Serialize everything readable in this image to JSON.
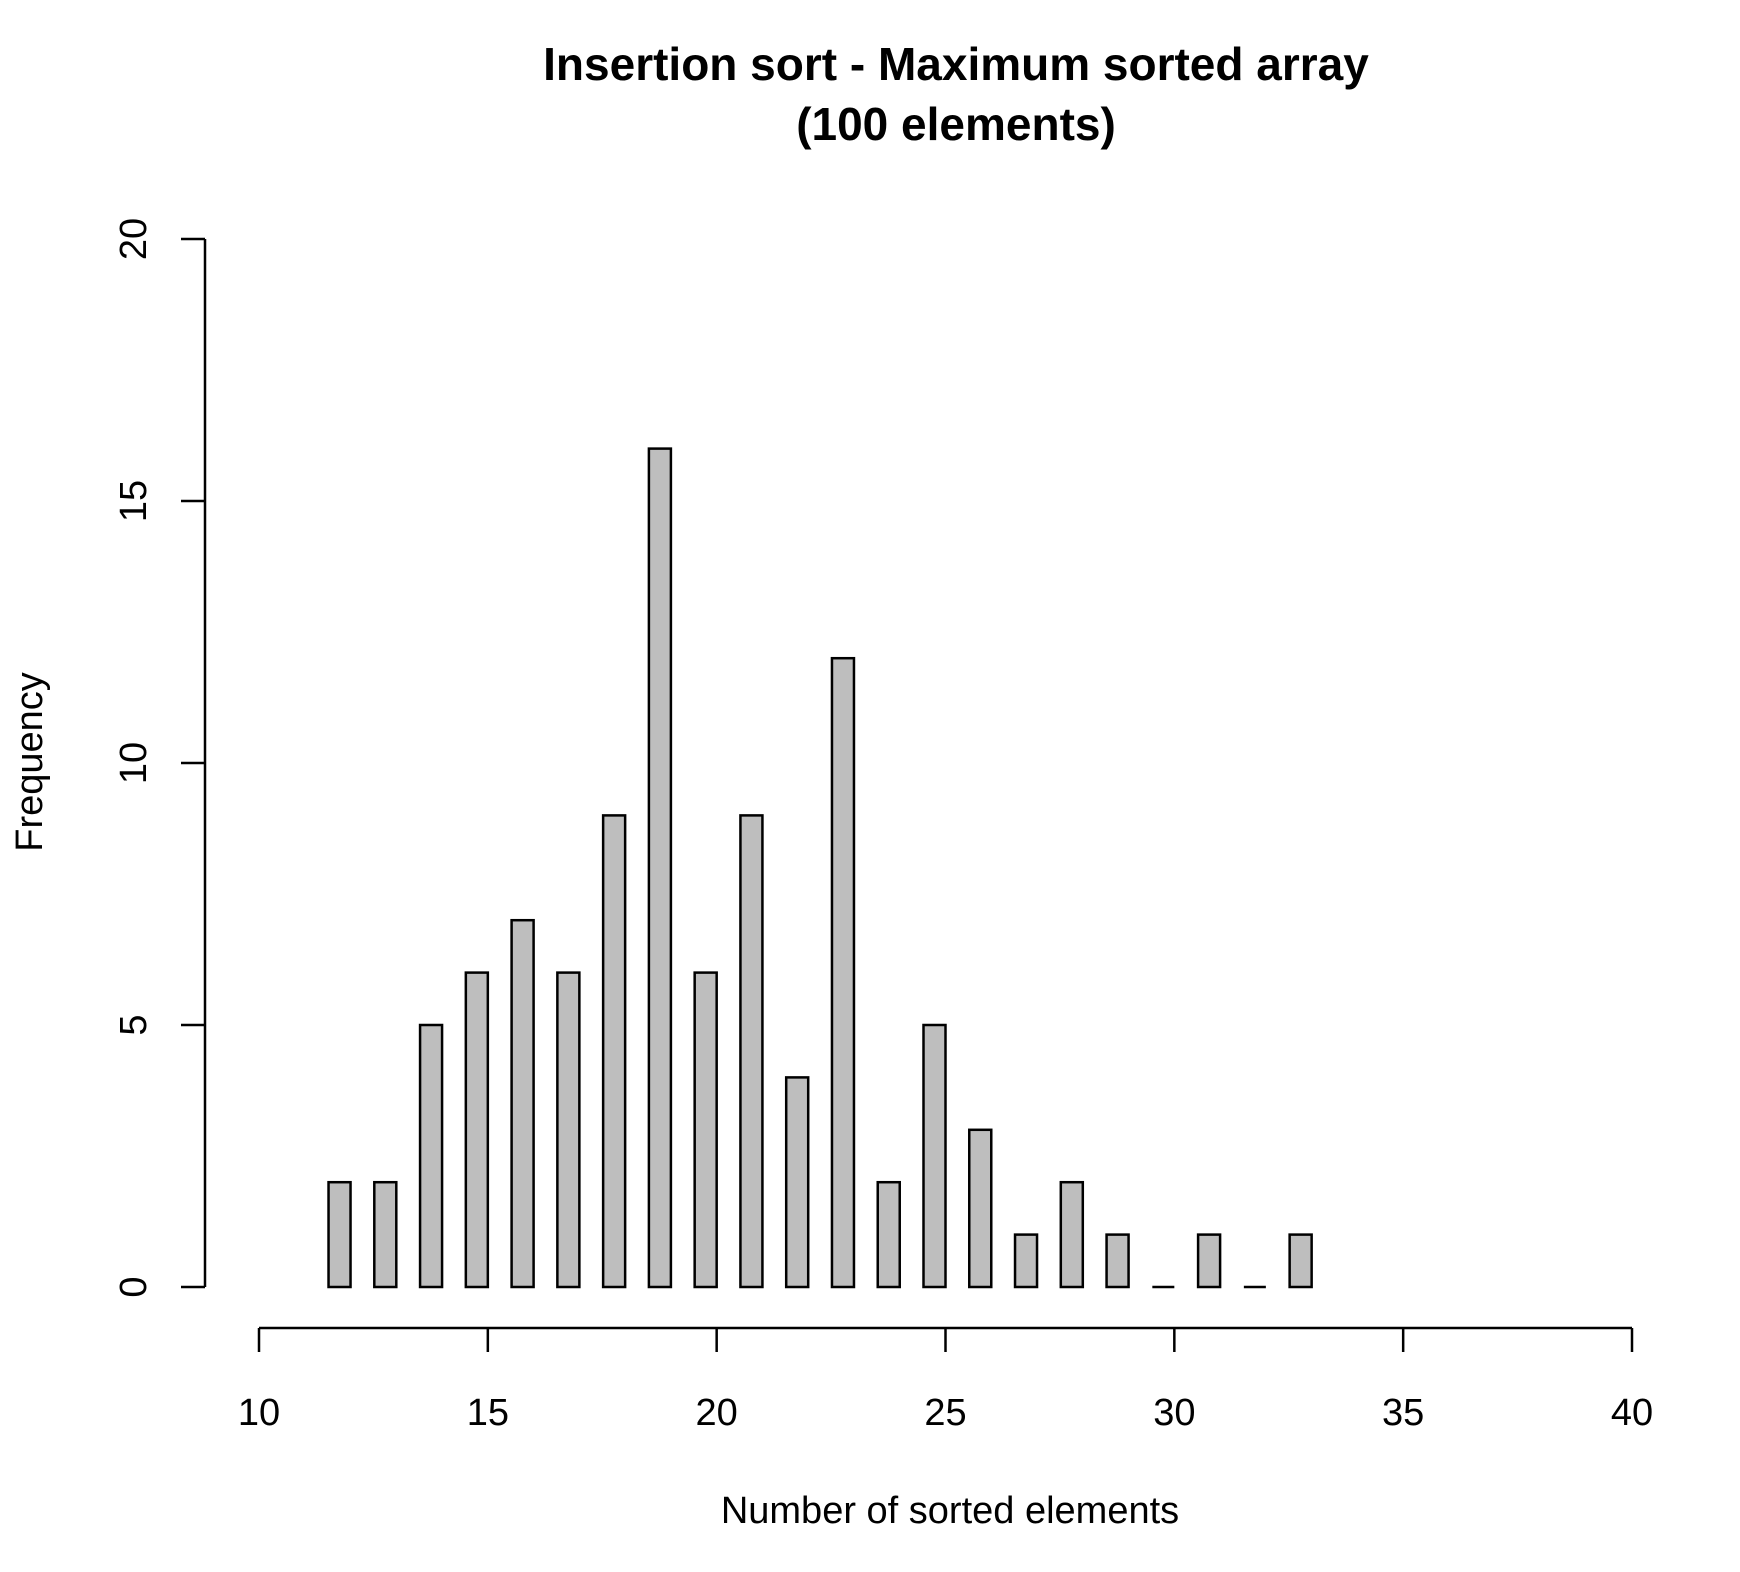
{
  "chart_data": {
    "type": "bar",
    "title": "Insertion sort - Maximum sorted array",
    "subtitle": "(100 elements)",
    "xlabel": "Number of sorted elements",
    "ylabel": "Frequency",
    "xlim": [
      10,
      40
    ],
    "ylim": [
      0,
      20
    ],
    "x_ticks": [
      10,
      15,
      20,
      25,
      30,
      35,
      40
    ],
    "y_ticks": [
      0,
      5,
      10,
      15,
      20
    ],
    "x": [
      12,
      13,
      14,
      15,
      16,
      17,
      18,
      19,
      20,
      21,
      22,
      23,
      24,
      25,
      26,
      27,
      28,
      29,
      30,
      31,
      32,
      33
    ],
    "values": [
      2,
      2,
      5,
      6,
      7,
      6,
      9,
      16,
      6,
      9,
      4,
      12,
      2,
      5,
      3,
      1,
      2,
      1,
      0,
      1,
      0,
      1
    ],
    "bar_color": "#bebebe",
    "grid": false,
    "legend": "none"
  }
}
